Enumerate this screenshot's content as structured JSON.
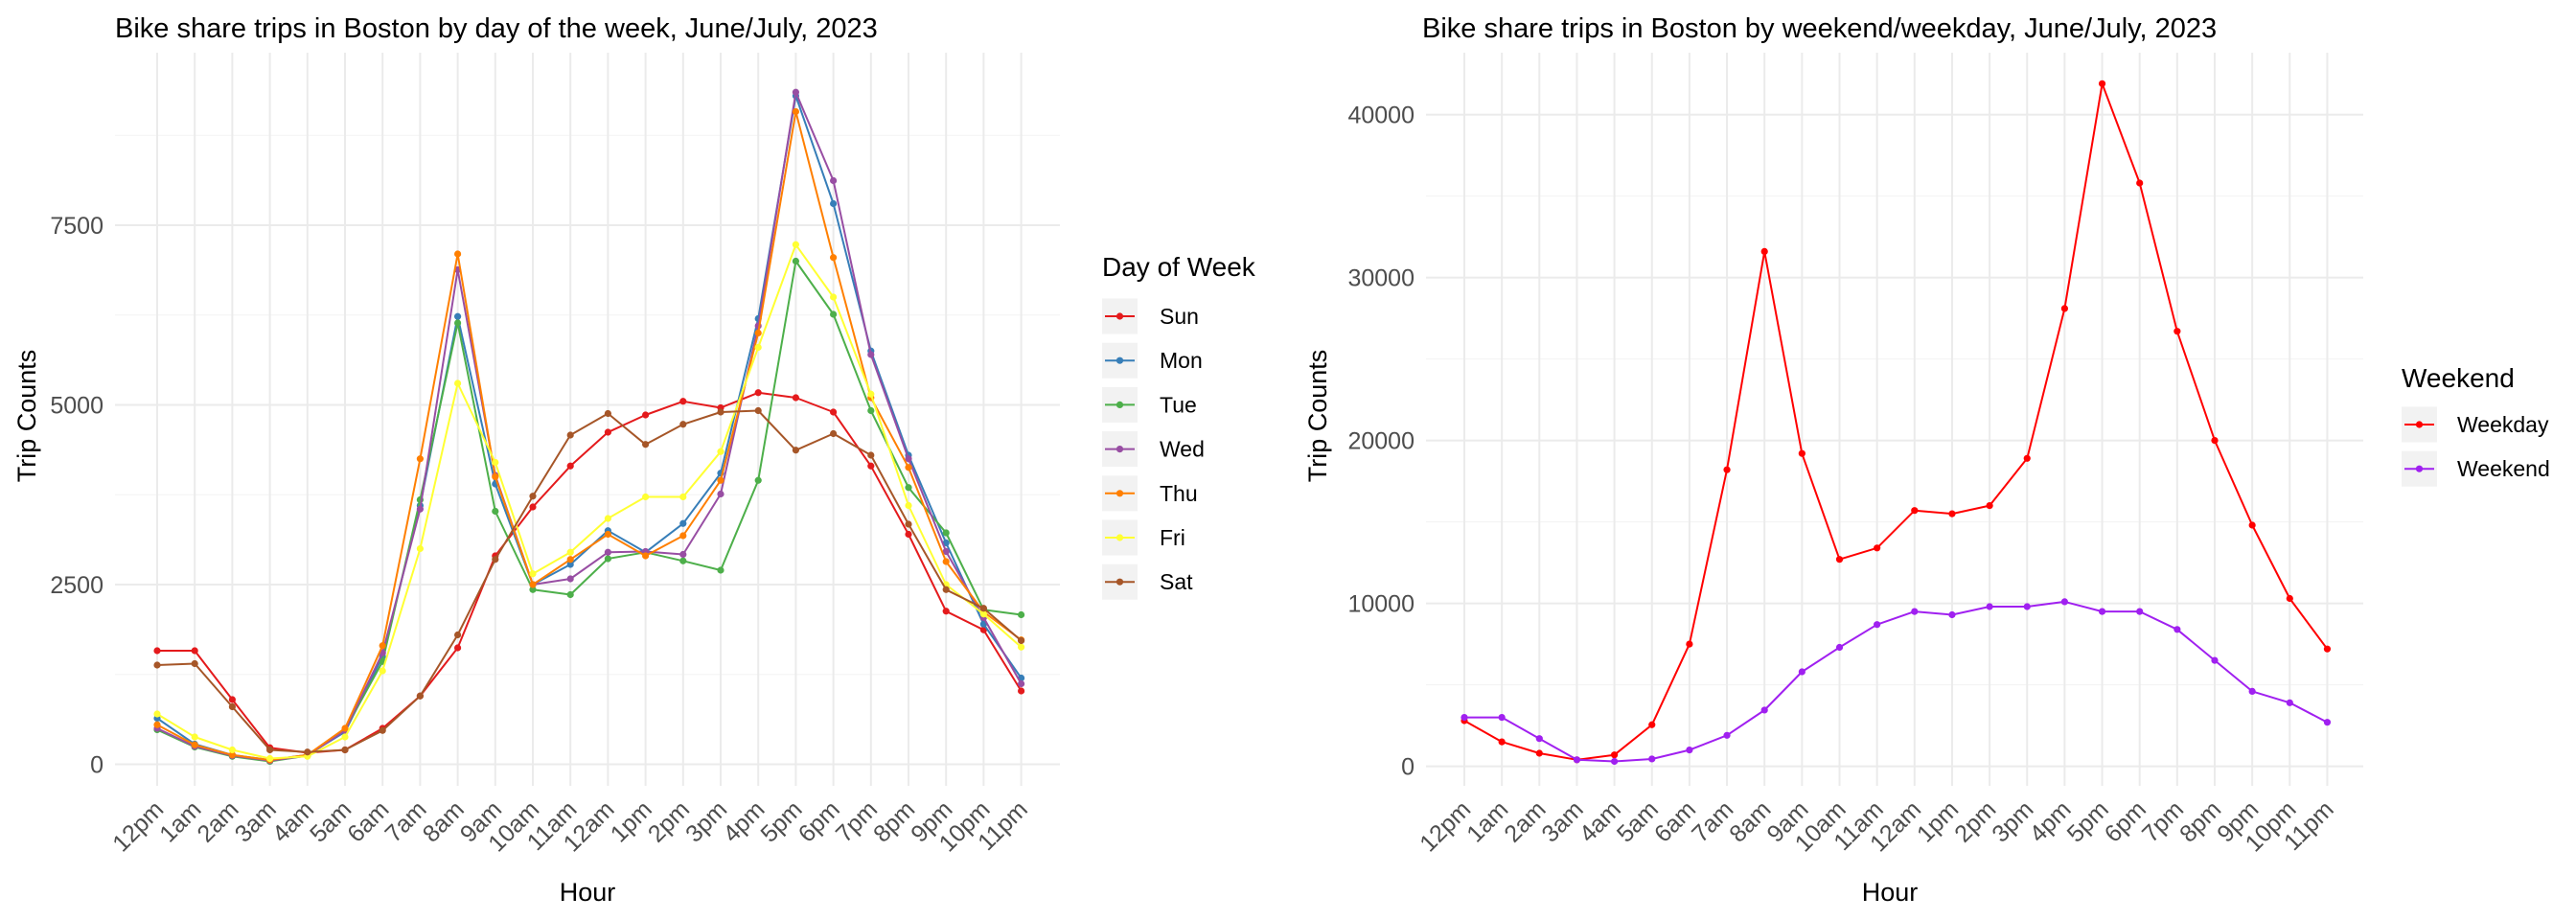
{
  "chart_data": [
    {
      "type": "line",
      "title": "Bike share trips in Boston by day of the week, June/July, 2023",
      "xlabel": "Hour",
      "ylabel": "Trip Counts",
      "categories": [
        "12pm",
        "1am",
        "2am",
        "3am",
        "4am",
        "5am",
        "6am",
        "7am",
        "8am",
        "9am",
        "10am",
        "11am",
        "12am",
        "1pm",
        "2pm",
        "3pm",
        "4pm",
        "5pm",
        "6pm",
        "7pm",
        "8pm",
        "9pm",
        "10pm",
        "11pm"
      ],
      "yticks": [
        0,
        2500,
        5000,
        7500
      ],
      "ytick_labels": [
        "0",
        "2500",
        "5000",
        "7500"
      ],
      "ylim": [
        -300,
        9900
      ],
      "legend_title": "Day of Week",
      "legend_position": "right",
      "grid": true,
      "series": [
        {
          "name": "Sun",
          "color": "#e41a1c",
          "values": [
            1580,
            1580,
            900,
            230,
            160,
            200,
            500,
            950,
            1620,
            2900,
            3580,
            4150,
            4620,
            4860,
            5050,
            4960,
            5170,
            5100,
            4900,
            4150,
            3200,
            2130,
            1870,
            1020
          ]
        },
        {
          "name": "Mon",
          "color": "#377eb8",
          "values": [
            640,
            280,
            130,
            60,
            130,
            450,
            1500,
            3600,
            6230,
            3900,
            2500,
            2780,
            3250,
            2950,
            3350,
            4050,
            6200,
            9300,
            7800,
            5750,
            4300,
            3080,
            1950,
            1200
          ]
        },
        {
          "name": "Tue",
          "color": "#4daf4a",
          "values": [
            480,
            240,
            110,
            40,
            120,
            480,
            1430,
            3680,
            6140,
            3520,
            2430,
            2360,
            2860,
            2950,
            2830,
            2700,
            3950,
            7000,
            6260,
            4920,
            3850,
            3220,
            2150,
            2080
          ]
        },
        {
          "name": "Wed",
          "color": "#984ea3",
          "values": [
            500,
            250,
            120,
            50,
            120,
            470,
            1550,
            3550,
            6880,
            4020,
            2500,
            2580,
            2950,
            2960,
            2920,
            3760,
            6100,
            9350,
            8120,
            5700,
            4250,
            2960,
            2040,
            1120
          ]
        },
        {
          "name": "Thu",
          "color": "#ff7f00",
          "values": [
            550,
            270,
            130,
            60,
            130,
            500,
            1650,
            4250,
            7100,
            4000,
            2500,
            2850,
            3200,
            2900,
            3180,
            3950,
            6000,
            9080,
            7050,
            5100,
            4130,
            2820,
            2120,
            1730
          ]
        },
        {
          "name": "Fri",
          "color": "#ffff33",
          "values": [
            700,
            380,
            200,
            80,
            110,
            380,
            1300,
            3000,
            5300,
            4200,
            2650,
            2950,
            3420,
            3720,
            3720,
            4350,
            5800,
            7230,
            6500,
            5150,
            3600,
            2500,
            2090,
            1630
          ]
        },
        {
          "name": "Sat",
          "color": "#a65628",
          "values": [
            1380,
            1400,
            800,
            200,
            170,
            200,
            470,
            950,
            1800,
            2850,
            3730,
            4580,
            4880,
            4450,
            4730,
            4900,
            4920,
            4370,
            4600,
            4300,
            3340,
            2430,
            2170,
            1720
          ]
        }
      ]
    },
    {
      "type": "line",
      "title": "Bike share trips in Boston by weekend/weekday, June/July, 2023",
      "xlabel": "Hour",
      "ylabel": "Trip Counts",
      "categories": [
        "12pm",
        "1am",
        "2am",
        "3am",
        "4am",
        "5am",
        "6am",
        "7am",
        "8am",
        "9am",
        "10am",
        "11am",
        "12am",
        "1pm",
        "2pm",
        "3pm",
        "4pm",
        "5pm",
        "6pm",
        "7pm",
        "8pm",
        "9pm",
        "10pm",
        "11pm"
      ],
      "yticks": [
        0,
        10000,
        20000,
        30000,
        40000
      ],
      "ytick_labels": [
        "0",
        "10000",
        "20000",
        "30000",
        "40000"
      ],
      "ylim": [
        -1200,
        43800
      ],
      "legend_title": "Weekend",
      "legend_position": "right",
      "grid": true,
      "series": [
        {
          "name": "Weekday",
          "color": "#ff0000",
          "values": [
            2800,
            1500,
            800,
            400,
            700,
            2550,
            7500,
            18200,
            31600,
            19200,
            12700,
            13400,
            15700,
            15500,
            16000,
            18900,
            28100,
            41900,
            35800,
            26700,
            20000,
            14800,
            10300,
            7200
          ]
        },
        {
          "name": "Weekend",
          "color": "#a020f0",
          "values": [
            3000,
            3000,
            1700,
            400,
            300,
            450,
            1000,
            1900,
            3450,
            5800,
            7300,
            8700,
            9500,
            9300,
            9800,
            9800,
            10100,
            9500,
            9500,
            8400,
            6500,
            4600,
            3900,
            2700
          ]
        }
      ]
    }
  ]
}
